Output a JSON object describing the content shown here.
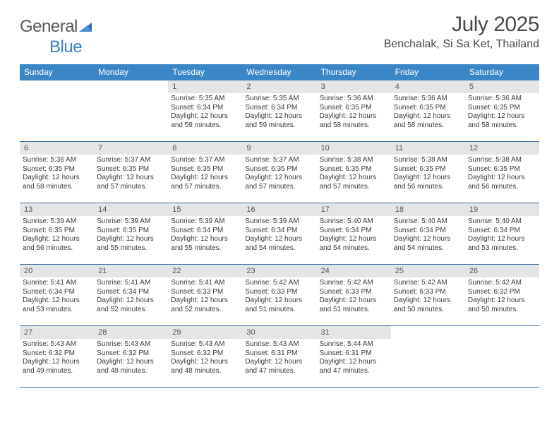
{
  "brand": {
    "word1": "General",
    "word2": "Blue"
  },
  "title": "July 2025",
  "location": "Benchalak, Si Sa Ket, Thailand",
  "colors": {
    "header_bg": "#3b86c7",
    "header_text": "#ffffff",
    "daynum_bg": "#e4e5e6",
    "week_border": "#3b6fa0",
    "text": "#3a3a3a",
    "brand_gray": "#5a5a5a",
    "brand_blue": "#3b7fc4"
  },
  "dow": [
    "Sunday",
    "Monday",
    "Tuesday",
    "Wednesday",
    "Thursday",
    "Friday",
    "Saturday"
  ],
  "weeks": [
    [
      null,
      null,
      {
        "n": "1",
        "sr": "Sunrise: 5:35 AM",
        "ss": "Sunset: 6:34 PM",
        "dl": "Daylight: 12 hours and 59 minutes."
      },
      {
        "n": "2",
        "sr": "Sunrise: 5:35 AM",
        "ss": "Sunset: 6:34 PM",
        "dl": "Daylight: 12 hours and 59 minutes."
      },
      {
        "n": "3",
        "sr": "Sunrise: 5:36 AM",
        "ss": "Sunset: 6:35 PM",
        "dl": "Daylight: 12 hours and 58 minutes."
      },
      {
        "n": "4",
        "sr": "Sunrise: 5:36 AM",
        "ss": "Sunset: 6:35 PM",
        "dl": "Daylight: 12 hours and 58 minutes."
      },
      {
        "n": "5",
        "sr": "Sunrise: 5:36 AM",
        "ss": "Sunset: 6:35 PM",
        "dl": "Daylight: 12 hours and 58 minutes."
      }
    ],
    [
      {
        "n": "6",
        "sr": "Sunrise: 5:36 AM",
        "ss": "Sunset: 6:35 PM",
        "dl": "Daylight: 12 hours and 58 minutes."
      },
      {
        "n": "7",
        "sr": "Sunrise: 5:37 AM",
        "ss": "Sunset: 6:35 PM",
        "dl": "Daylight: 12 hours and 57 minutes."
      },
      {
        "n": "8",
        "sr": "Sunrise: 5:37 AM",
        "ss": "Sunset: 6:35 PM",
        "dl": "Daylight: 12 hours and 57 minutes."
      },
      {
        "n": "9",
        "sr": "Sunrise: 5:37 AM",
        "ss": "Sunset: 6:35 PM",
        "dl": "Daylight: 12 hours and 57 minutes."
      },
      {
        "n": "10",
        "sr": "Sunrise: 5:38 AM",
        "ss": "Sunset: 6:35 PM",
        "dl": "Daylight: 12 hours and 57 minutes."
      },
      {
        "n": "11",
        "sr": "Sunrise: 5:38 AM",
        "ss": "Sunset: 6:35 PM",
        "dl": "Daylight: 12 hours and 56 minutes."
      },
      {
        "n": "12",
        "sr": "Sunrise: 5:38 AM",
        "ss": "Sunset: 6:35 PM",
        "dl": "Daylight: 12 hours and 56 minutes."
      }
    ],
    [
      {
        "n": "13",
        "sr": "Sunrise: 5:39 AM",
        "ss": "Sunset: 6:35 PM",
        "dl": "Daylight: 12 hours and 56 minutes."
      },
      {
        "n": "14",
        "sr": "Sunrise: 5:39 AM",
        "ss": "Sunset: 6:35 PM",
        "dl": "Daylight: 12 hours and 55 minutes."
      },
      {
        "n": "15",
        "sr": "Sunrise: 5:39 AM",
        "ss": "Sunset: 6:34 PM",
        "dl": "Daylight: 12 hours and 55 minutes."
      },
      {
        "n": "16",
        "sr": "Sunrise: 5:39 AM",
        "ss": "Sunset: 6:34 PM",
        "dl": "Daylight: 12 hours and 54 minutes."
      },
      {
        "n": "17",
        "sr": "Sunrise: 5:40 AM",
        "ss": "Sunset: 6:34 PM",
        "dl": "Daylight: 12 hours and 54 minutes."
      },
      {
        "n": "18",
        "sr": "Sunrise: 5:40 AM",
        "ss": "Sunset: 6:34 PM",
        "dl": "Daylight: 12 hours and 54 minutes."
      },
      {
        "n": "19",
        "sr": "Sunrise: 5:40 AM",
        "ss": "Sunset: 6:34 PM",
        "dl": "Daylight: 12 hours and 53 minutes."
      }
    ],
    [
      {
        "n": "20",
        "sr": "Sunrise: 5:41 AM",
        "ss": "Sunset: 6:34 PM",
        "dl": "Daylight: 12 hours and 53 minutes."
      },
      {
        "n": "21",
        "sr": "Sunrise: 5:41 AM",
        "ss": "Sunset: 6:34 PM",
        "dl": "Daylight: 12 hours and 52 minutes."
      },
      {
        "n": "22",
        "sr": "Sunrise: 5:41 AM",
        "ss": "Sunset: 6:33 PM",
        "dl": "Daylight: 12 hours and 52 minutes."
      },
      {
        "n": "23",
        "sr": "Sunrise: 5:42 AM",
        "ss": "Sunset: 6:33 PM",
        "dl": "Daylight: 12 hours and 51 minutes."
      },
      {
        "n": "24",
        "sr": "Sunrise: 5:42 AM",
        "ss": "Sunset: 6:33 PM",
        "dl": "Daylight: 12 hours and 51 minutes."
      },
      {
        "n": "25",
        "sr": "Sunrise: 5:42 AM",
        "ss": "Sunset: 6:33 PM",
        "dl": "Daylight: 12 hours and 50 minutes."
      },
      {
        "n": "26",
        "sr": "Sunrise: 5:42 AM",
        "ss": "Sunset: 6:32 PM",
        "dl": "Daylight: 12 hours and 50 minutes."
      }
    ],
    [
      {
        "n": "27",
        "sr": "Sunrise: 5:43 AM",
        "ss": "Sunset: 6:32 PM",
        "dl": "Daylight: 12 hours and 49 minutes."
      },
      {
        "n": "28",
        "sr": "Sunrise: 5:43 AM",
        "ss": "Sunset: 6:32 PM",
        "dl": "Daylight: 12 hours and 48 minutes."
      },
      {
        "n": "29",
        "sr": "Sunrise: 5:43 AM",
        "ss": "Sunset: 6:32 PM",
        "dl": "Daylight: 12 hours and 48 minutes."
      },
      {
        "n": "30",
        "sr": "Sunrise: 5:43 AM",
        "ss": "Sunset: 6:31 PM",
        "dl": "Daylight: 12 hours and 47 minutes."
      },
      {
        "n": "31",
        "sr": "Sunrise: 5:44 AM",
        "ss": "Sunset: 6:31 PM",
        "dl": "Daylight: 12 hours and 47 minutes."
      },
      null,
      null
    ]
  ]
}
